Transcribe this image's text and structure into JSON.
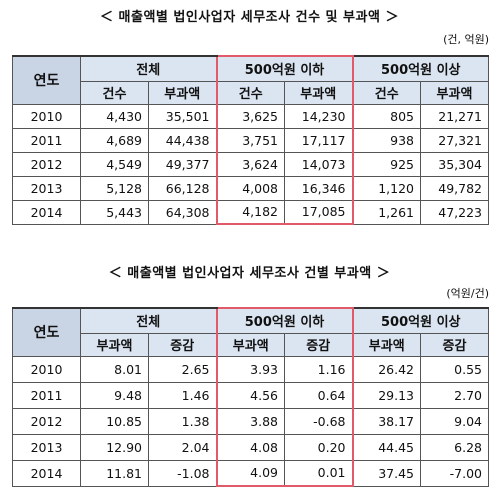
{
  "tables": [
    {
      "title": "＜ 매출액별 법인사업자 세무조사 건수 및 부과액 ＞",
      "unit": "(건, 억원)",
      "headers": [
        "연도",
        "전체",
        "500억원 이하",
        "500억원 이상"
      ],
      "subheaders": [
        "건수",
        "부과액",
        "건수",
        "부과액",
        "건수",
        "부과액"
      ],
      "rows": [
        [
          "2010",
          "4,430",
          "35,501",
          "3,625",
          "14,230",
          "805",
          "21,271"
        ],
        [
          "2011",
          "4,689",
          "44,438",
          "3,751",
          "17,117",
          "938",
          "27,321"
        ],
        [
          "2012",
          "4,549",
          "49,377",
          "3,624",
          "14,073",
          "925",
          "35,304"
        ],
        [
          "2013",
          "5,128",
          "66,128",
          "4,008",
          "16,346",
          "1,120",
          "49,782"
        ],
        [
          "2014",
          "5,443",
          "64,308",
          "4,182",
          "17,085",
          "1,261",
          "47,223"
        ]
      ]
    },
    {
      "title": "＜ 매출액별 법인사업자 세무조사 건별 부과액 ＞",
      "unit": "(억원/건)",
      "headers": [
        "연도",
        "전체",
        "500억원 이하",
        "500억원 이상"
      ],
      "subheaders": [
        "부과액",
        "증감",
        "부과액",
        "증감",
        "부과액",
        "증감"
      ],
      "rows": [
        [
          "2010",
          "8.01",
          "2.65",
          "3.93",
          "1.16",
          "26.42",
          "0.55"
        ],
        [
          "2011",
          "9.48",
          "1.46",
          "4.56",
          "0.64",
          "29.13",
          "2.70"
        ],
        [
          "2012",
          "10.85",
          "1.38",
          "3.88",
          "-0.68",
          "38.17",
          "9.04"
        ],
        [
          "2013",
          "12.90",
          "2.04",
          "4.08",
          "0.20",
          "44.45",
          "6.28"
        ],
        [
          "2014",
          "11.81",
          "-1.08",
          "4.09",
          "0.01",
          "37.45",
          "-7.00"
        ]
      ]
    }
  ]
}
